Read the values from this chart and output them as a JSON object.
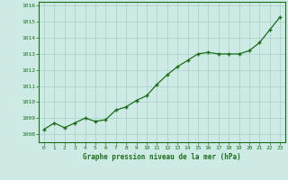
{
  "x": [
    0,
    1,
    2,
    3,
    4,
    5,
    6,
    7,
    8,
    9,
    10,
    11,
    12,
    13,
    14,
    15,
    16,
    17,
    18,
    19,
    20,
    21,
    22,
    23
  ],
  "y": [
    1008.3,
    1008.7,
    1008.4,
    1008.7,
    1009.0,
    1008.8,
    1008.9,
    1009.5,
    1009.7,
    1010.1,
    1010.4,
    1011.1,
    1011.7,
    1012.2,
    1012.6,
    1013.0,
    1013.1,
    1013.0,
    1013.0,
    1013.0,
    1013.2,
    1013.7,
    1014.5,
    1015.3
  ],
  "line_color": "#1a6e1a",
  "marker_color": "#1a6e1a",
  "bg_color": "#cdeae4",
  "grid_color": "#a8cfc8",
  "title": "Graphe pression niveau de la mer (hPa)",
  "ylim": [
    1007.5,
    1016.25
  ],
  "xlim": [
    -0.5,
    23.5
  ],
  "yticks": [
    1008,
    1009,
    1010,
    1011,
    1012,
    1013,
    1014,
    1015,
    1016
  ],
  "xticks": [
    0,
    1,
    2,
    3,
    4,
    5,
    6,
    7,
    8,
    9,
    10,
    11,
    12,
    13,
    14,
    15,
    16,
    17,
    18,
    19,
    20,
    21,
    22,
    23
  ]
}
